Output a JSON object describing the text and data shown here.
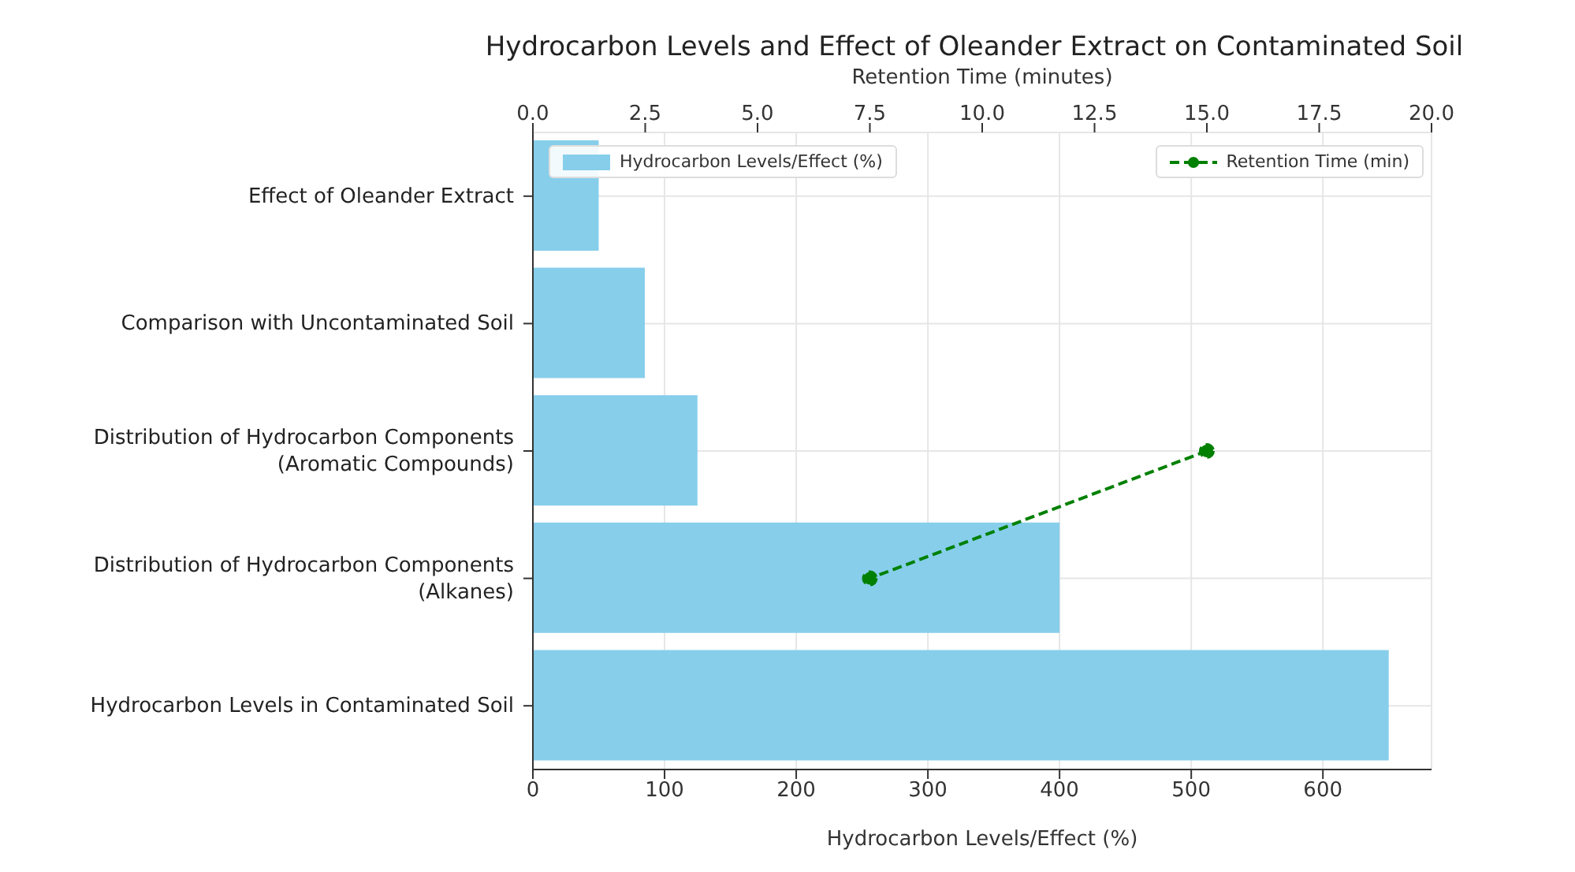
{
  "chart_data": {
    "type": "bar",
    "orientation": "horizontal",
    "title": "Hydrocarbon Levels and Effect of Oleander Extract on Contaminated Soil",
    "xlabel": "Hydrocarbon Levels/Effect (%)",
    "x2label": "Retention Time (minutes)",
    "categories": [
      "Effect of Oleander Extract",
      "Comparison with Uncontaminated Soil",
      "Distribution of Hydrocarbon Components\n(Aromatic Compounds)",
      "Distribution of Hydrocarbon Components\n(Alkanes)",
      "Hydrocarbon Levels in Contaminated Soil"
    ],
    "series": [
      {
        "name": "Hydrocarbon Levels/Effect (%)",
        "color": "#87ceeb",
        "values": [
          50,
          85,
          125,
          400,
          650
        ]
      },
      {
        "name": "Retention Time (min)",
        "type": "line",
        "axis": "x2",
        "color": "#008000",
        "line_style": "dashed",
        "marker": "circle",
        "values": [
          null,
          null,
          15,
          7.5,
          null
        ]
      }
    ],
    "xlim": [
      0,
      682.5
    ],
    "xticks": [
      0,
      100,
      200,
      300,
      400,
      500,
      600
    ],
    "x2lim": [
      0,
      20
    ],
    "x2ticks": [
      {
        "value": 0,
        "label": "0.0"
      },
      {
        "value": 2.5,
        "label": "2.5"
      },
      {
        "value": 5,
        "label": "5.0"
      },
      {
        "value": 7.5,
        "label": "7.5"
      },
      {
        "value": 10,
        "label": "10.0"
      },
      {
        "value": 12.5,
        "label": "12.5"
      },
      {
        "value": 15,
        "label": "15.0"
      },
      {
        "value": 17.5,
        "label": "17.5"
      },
      {
        "value": 20,
        "label": "20.0"
      }
    ],
    "grid": true,
    "legend": "top"
  }
}
